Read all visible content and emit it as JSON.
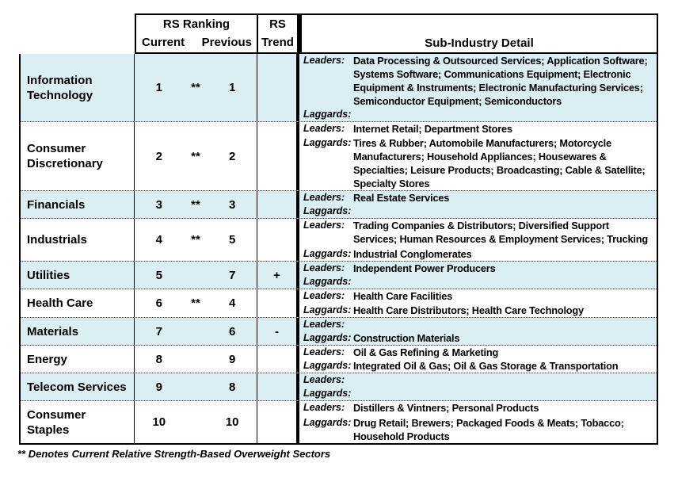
{
  "document": {
    "header": {
      "rs_ranking": "RS Ranking",
      "current": "Current",
      "previous": "Previous",
      "rs": "RS",
      "trend": "Trend",
      "sub_industry_detail": "Sub-Industry Detail"
    },
    "labels": {
      "leaders": "Leaders:",
      "laggards": "Laggards:"
    },
    "rows": [
      {
        "sector": "Information Technology",
        "current": "1",
        "marker": "**",
        "previous": "1",
        "trend": "",
        "leaders": "Data Processing & Outsourced Services; Application Software; Systems Software; Communications Equipment; Electronic Equipment & Instruments; Electronic Manufacturing Services; Semiconductor Equipment; Semiconductors",
        "laggards": ""
      },
      {
        "sector": "Consumer Discretionary",
        "current": "2",
        "marker": "**",
        "previous": "2",
        "trend": "",
        "leaders": "Internet Retail; Department Stores",
        "laggards": "Tires & Rubber; Automobile Manufacturers; Motorcycle Manufacturers; Household Appliances; Housewares & Specialties; Leisure Products; Broadcasting; Cable & Satellite; Specialty Stores"
      },
      {
        "sector": "Financials",
        "current": "3",
        "marker": "**",
        "previous": "3",
        "trend": "",
        "leaders": "Real Estate Services",
        "laggards": ""
      },
      {
        "sector": "Industrials",
        "current": "4",
        "marker": "**",
        "previous": "5",
        "trend": "",
        "leaders": "Trading Companies & Distributors; Diversified Support Services; Human Resources & Employment Services; Trucking",
        "laggards": "Industrial Conglomerates"
      },
      {
        "sector": "Utilities",
        "current": "5",
        "marker": "",
        "previous": "7",
        "trend": "+",
        "leaders": "Independent Power Producers",
        "laggards": ""
      },
      {
        "sector": "Health Care",
        "current": "6",
        "marker": "**",
        "previous": "4",
        "trend": "",
        "leaders": "Health Care Facilities",
        "laggards": "Health Care Distributors; Health Care Technology"
      },
      {
        "sector": "Materials",
        "current": "7",
        "marker": "",
        "previous": "6",
        "trend": "-",
        "leaders": "",
        "laggards": "Construction Materials"
      },
      {
        "sector": "Energy",
        "current": "8",
        "marker": "",
        "previous": "9",
        "trend": "",
        "leaders": "Oil & Gas Refining & Marketing",
        "laggards": "Integrated Oil & Gas; Oil & Gas Storage & Transportation"
      },
      {
        "sector": "Telecom Services",
        "current": "9",
        "marker": "",
        "previous": "8",
        "trend": "",
        "leaders": "",
        "laggards": ""
      },
      {
        "sector": "Consumer Staples",
        "current": "10",
        "marker": "",
        "previous": "10",
        "trend": "",
        "leaders": "Distillers & Vintners; Personal Products",
        "laggards": "Drug Retail; Brewers; Packaged Foods & Meats; Tobacco; Household Products"
      }
    ],
    "footnote": "** Denotes Current Relative Strength-Based Overweight Sectors",
    "colors": {
      "row_highlight": "#daeef3",
      "border": "#000000",
      "text": "#000000"
    }
  }
}
